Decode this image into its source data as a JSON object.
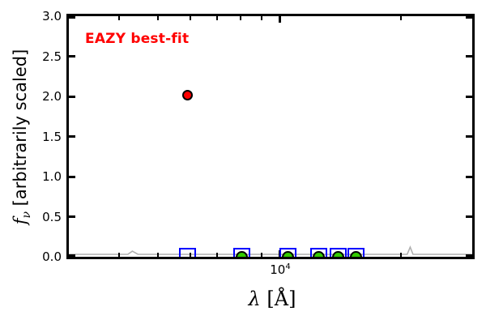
{
  "figure": {
    "background": "#ffffff",
    "annotation": {
      "text": "EAZY best-fit",
      "color": "#ff0000"
    },
    "y_axis": {
      "label_f": "f",
      "label_sub": "ν",
      "label_rest": " [arbitrarily scaled]",
      "tick_labels": [
        "0.0",
        "0.5",
        "1.0",
        "1.5",
        "2.0",
        "2.5",
        "3.0"
      ]
    },
    "x_axis": {
      "label_lambda": "λ",
      "label_unit_open": " [",
      "label_angstrom": "Å",
      "label_unit_close": "]",
      "major_tick_label_base": "10",
      "major_tick_label_exp": "4"
    }
  },
  "chart_data": {
    "type": "scatter",
    "title": "",
    "xlabel": "λ [Å]",
    "ylabel": "f_ν [arbitrarily scaled]",
    "x_scale": "log",
    "xlim": [
      3000,
      30000
    ],
    "ylim": [
      0.0,
      3.0
    ],
    "grid": false,
    "legend": false,
    "y_ticks": [
      0.0,
      0.5,
      1.0,
      1.5,
      2.0,
      2.5,
      3.0
    ],
    "x_major_ticks": [
      10000
    ],
    "x_minor_ticks": [
      4000,
      5000,
      6000,
      7000,
      8000,
      9000,
      20000
    ],
    "annotation": "EAZY best-fit",
    "series": [
      {
        "name": "template-spectrum",
        "type": "line",
        "color": "#b0b0b0",
        "x": [
          3000,
          4200,
          4310,
          4450,
          20700,
          21050,
          21400,
          30000
        ],
        "y": [
          0.03,
          0.03,
          0.07,
          0.03,
          0.03,
          0.12,
          0.03,
          0.03
        ]
      },
      {
        "name": "template-photometry",
        "type": "scatter",
        "marker": "open-square",
        "color": "#0000ff",
        "marker_size_px": 21,
        "x": [
          5900,
          8050,
          10500,
          12500,
          13950,
          15450
        ],
        "y": [
          0.01,
          0.01,
          0.01,
          0.01,
          0.01,
          0.01
        ]
      },
      {
        "name": "observed-photometry",
        "type": "scatter",
        "marker": "filled-circle",
        "color": "#33cc00",
        "marker_size_px": 15,
        "x": [
          8050,
          10500,
          12500,
          13950,
          15450
        ],
        "y": [
          0.0,
          0.0,
          0.0,
          0.0,
          0.0
        ]
      },
      {
        "name": "observed-photometry-highlight",
        "type": "scatter",
        "marker": "filled-circle",
        "color": "#ff0000",
        "marker_size_px": 13,
        "x": [
          5900
        ],
        "y": [
          2.02
        ]
      }
    ]
  }
}
